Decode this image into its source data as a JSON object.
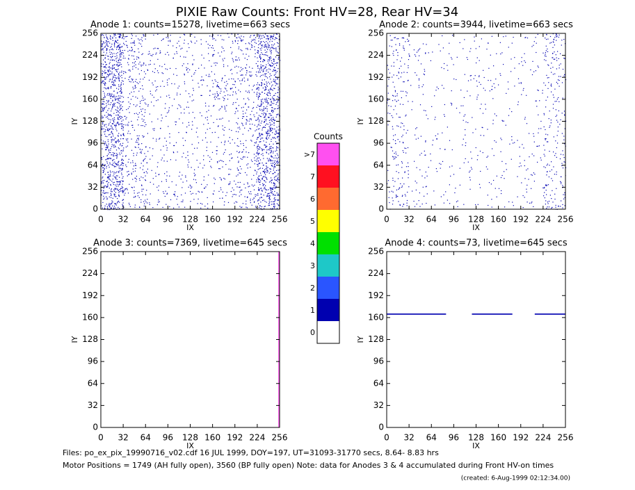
{
  "title": "PIXIE Raw Counts:  Front HV=28, Rear HV=34",
  "footer": [
    "Files: po_ex_pix_19990716_v02.cdf    16 JUL 1999, DOY=197, UT=31093-31770 secs,  8.64- 8.83 hrs",
    "Motor Positions = 1749 (AH fully open), 3560 (BP fully open)    Note: data for Anodes 3 & 4 accumulated during Front HV-on times",
    "(created:  6-Aug-1999 02:12:34.00)"
  ],
  "chart_data": [
    {
      "type": "heatmap",
      "title": "Anode 1: counts=15278, livetime=663 secs",
      "xlabel": "IX",
      "ylabel": "IY",
      "xlim": [
        0,
        256
      ],
      "ylim": [
        0,
        256
      ],
      "xticks": [
        0,
        32,
        64,
        96,
        128,
        160,
        192,
        224,
        256
      ],
      "yticks": [
        0,
        32,
        64,
        96,
        128,
        160,
        192,
        224,
        256
      ],
      "color": "#0000b0",
      "density": [
        [
          30,
          10,
          5,
          5,
          5,
          6,
          10,
          30
        ],
        [
          28,
          9,
          5,
          4,
          5,
          5,
          9,
          28
        ],
        [
          28,
          9,
          5,
          4,
          4,
          5,
          10,
          28
        ],
        [
          28,
          9,
          4,
          4,
          4,
          5,
          9,
          28
        ],
        [
          28,
          9,
          4,
          4,
          4,
          5,
          10,
          28
        ],
        [
          28,
          9,
          5,
          4,
          5,
          14,
          9,
          26
        ],
        [
          30,
          10,
          5,
          5,
          5,
          5,
          10,
          28
        ],
        [
          32,
          12,
          6,
          6,
          6,
          6,
          12,
          30
        ]
      ],
      "features": []
    },
    {
      "type": "heatmap",
      "title": "Anode 2: counts=3944, livetime=663 secs",
      "xlabel": "IX",
      "ylabel": "IY",
      "xlim": [
        0,
        256
      ],
      "ylim": [
        0,
        256
      ],
      "xticks": [
        0,
        32,
        64,
        96,
        128,
        160,
        192,
        224,
        256
      ],
      "yticks": [
        0,
        32,
        64,
        96,
        128,
        160,
        192,
        224,
        256
      ],
      "color": "#0000b0",
      "density": [
        [
          8,
          3,
          2,
          2,
          2,
          2,
          3,
          10
        ],
        [
          6,
          3,
          2,
          2,
          2,
          2,
          3,
          8
        ],
        [
          6,
          2,
          2,
          2,
          2,
          2,
          3,
          6
        ],
        [
          6,
          2,
          2,
          2,
          2,
          2,
          2,
          6
        ],
        [
          6,
          2,
          2,
          2,
          2,
          2,
          2,
          6
        ],
        [
          6,
          2,
          2,
          2,
          5,
          2,
          2,
          6
        ],
        [
          6,
          3,
          2,
          2,
          2,
          2,
          3,
          8
        ],
        [
          8,
          3,
          2,
          2,
          2,
          2,
          3,
          10
        ]
      ],
      "features": []
    },
    {
      "type": "heatmap",
      "title": "Anode 3: counts=7369, livetime=645 secs",
      "xlabel": "IX",
      "ylabel": "IY",
      "xlim": [
        0,
        256
      ],
      "ylim": [
        0,
        256
      ],
      "xticks": [
        0,
        32,
        64,
        96,
        128,
        160,
        192,
        224,
        256
      ],
      "yticks": [
        0,
        32,
        64,
        96,
        128,
        160,
        192,
        224,
        256
      ],
      "color": "#0000b0",
      "density": [
        [
          0,
          0,
          0,
          0,
          0,
          0,
          0,
          0
        ],
        [
          0,
          0,
          0,
          0,
          0,
          0,
          0,
          0
        ],
        [
          0,
          0,
          0,
          0,
          0,
          0,
          0,
          0
        ],
        [
          0,
          0,
          0,
          0,
          0,
          0,
          0,
          0
        ],
        [
          0,
          0,
          0,
          0,
          0,
          0,
          0,
          0
        ],
        [
          0,
          0,
          0,
          0,
          0,
          0,
          0,
          0
        ],
        [
          0,
          0,
          0,
          0,
          0,
          0,
          0,
          0
        ],
        [
          0,
          0,
          0,
          0,
          0,
          0,
          0,
          0
        ]
      ],
      "features": [
        {
          "ix": [
            254,
            256
          ],
          "iy": [
            0,
            256
          ],
          "color": "#ff50f0"
        }
      ]
    },
    {
      "type": "heatmap",
      "title": "Anode 4: counts=73, livetime=645 secs",
      "xlabel": "IX",
      "ylabel": "IY",
      "xlim": [
        0,
        256
      ],
      "ylim": [
        0,
        256
      ],
      "xticks": [
        0,
        32,
        64,
        96,
        128,
        160,
        192,
        224,
        256
      ],
      "yticks": [
        0,
        32,
        64,
        96,
        128,
        160,
        192,
        224,
        256
      ],
      "color": "#0000b0",
      "density": [
        [
          0,
          0,
          0,
          0,
          0,
          0,
          0,
          0
        ],
        [
          0,
          0,
          0,
          0,
          0,
          0,
          0,
          0
        ],
        [
          0,
          0,
          0,
          0,
          0,
          0,
          0,
          0
        ],
        [
          0,
          0,
          0,
          0,
          0,
          0,
          0,
          0
        ],
        [
          0,
          0,
          0,
          0,
          0,
          0,
          0,
          0
        ],
        [
          0,
          0,
          0,
          0,
          0,
          0,
          0,
          0
        ],
        [
          0,
          0,
          0,
          0,
          0,
          0,
          0,
          0
        ],
        [
          0,
          0,
          0,
          0,
          0,
          0,
          0,
          0
        ]
      ],
      "features": [
        {
          "ix": [
            0,
            85
          ],
          "iy": [
            164,
            166
          ],
          "color": "#0000b0"
        },
        {
          "ix": [
            122,
            180
          ],
          "iy": [
            164,
            166
          ],
          "color": "#0000b0"
        },
        {
          "ix": [
            212,
            256
          ],
          "iy": [
            164,
            166
          ],
          "color": "#0000b0"
        }
      ]
    },
    {
      "type": "colorbar",
      "title": "Counts",
      "labels": [
        "0",
        "1",
        "2",
        "3",
        "4",
        "5",
        "6",
        "7",
        ">7"
      ],
      "colors": [
        "#ffffff",
        "#0000b0",
        "#2a55ff",
        "#1ec8c8",
        "#00e000",
        "#ffff00",
        "#ff6a30",
        "#ff1020",
        "#ff50f0"
      ]
    }
  ]
}
